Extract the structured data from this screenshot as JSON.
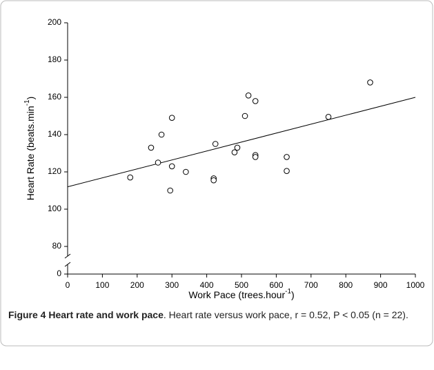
{
  "chart_data": {
    "type": "scatter",
    "xlabel": [
      "Work Pace (trees.hour",
      "-1",
      ")"
    ],
    "ylabel": [
      "Heart Rate (beats.min",
      "-1",
      ")"
    ],
    "x": [
      180,
      240,
      260,
      270,
      300,
      300,
      295,
      340,
      420,
      420,
      425,
      480,
      488,
      510,
      520,
      540,
      540,
      540,
      630,
      630,
      750,
      870
    ],
    "values": [
      117,
      133,
      125,
      140,
      149,
      123,
      110,
      120,
      116.5,
      115.5,
      135,
      130.5,
      133,
      150,
      161,
      158,
      129,
      128,
      128,
      120.5,
      149.5,
      168
    ],
    "trend_line": {
      "x": [
        0,
        1000
      ],
      "y": [
        112,
        160
      ]
    },
    "xlim": [
      0,
      1000
    ],
    "xticks": [
      0,
      100,
      200,
      300,
      400,
      500,
      600,
      700,
      800,
      900,
      1000
    ],
    "ylim": [
      0,
      200
    ],
    "yticks": [
      0,
      80,
      100,
      120,
      140,
      160,
      180,
      200
    ],
    "axis_break": true,
    "color": "#000000"
  },
  "caption": {
    "label": "Figure 4 Heart rate and work pace",
    "text": ". Heart rate versus work pace, r = 0.52, P < 0.05 (n = 22)."
  }
}
